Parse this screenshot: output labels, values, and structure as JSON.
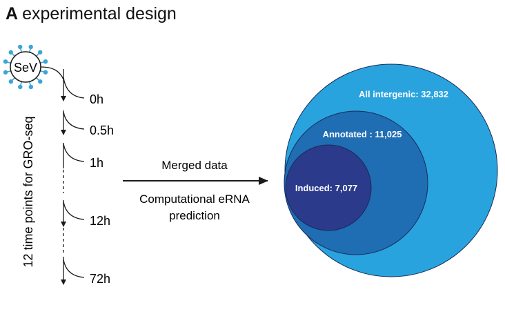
{
  "panel": {
    "letter": "A",
    "title": "experimental design"
  },
  "virus": {
    "label": "SeV"
  },
  "timeline": {
    "axis_label": "12 time points for GRO-seq",
    "time_points": [
      "0h",
      "0.5h",
      "1h",
      "12h",
      "72h"
    ]
  },
  "arrow": {
    "label_top": "Merged data",
    "label_bottom_line1": "Computational eRNA",
    "label_bottom_line2": "prediction"
  },
  "venn": {
    "sets": [
      {
        "label": "All intergenic: 32,832",
        "count": 32832,
        "color": "#29a3dd"
      },
      {
        "label": "Annotated : 11,025",
        "count": 11025,
        "color": "#1f6db3"
      },
      {
        "label": "Induced: 7,077",
        "count": 7077,
        "color": "#2c3a8c"
      }
    ]
  },
  "colors": {
    "virus_spikes": "#3aa6d6",
    "stroke": "#1a1a1a"
  }
}
